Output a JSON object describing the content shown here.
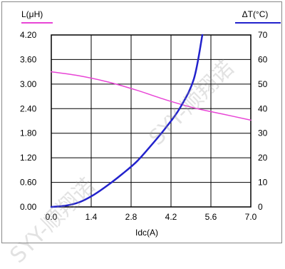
{
  "chart_data": {
    "type": "line",
    "xlabel": "Idc(A)",
    "x_ticks": [
      "0.0",
      "1.4",
      "2.8",
      "4.2",
      "5.6",
      "7.0"
    ],
    "xlim": [
      0,
      7
    ],
    "left_axis": {
      "label": "L(μH)",
      "ticks": [
        "0.00",
        "0.60",
        "1.20",
        "1.80",
        "2.40",
        "3.00",
        "3.60",
        "4.20"
      ],
      "ylim": [
        0,
        4.2
      ]
    },
    "right_axis": {
      "label": "ΔT(°C)",
      "ticks": [
        "0",
        "10",
        "20",
        "30",
        "40",
        "50",
        "60",
        "70"
      ],
      "ylim": [
        0,
        70
      ]
    },
    "grid": true,
    "legend": "title-lines",
    "series": [
      {
        "name": "L(μH)",
        "axis": "left",
        "color": "#e845d6",
        "x": [
          0,
          1,
          2,
          3,
          4,
          5,
          6,
          7
        ],
        "y": [
          3.3,
          3.2,
          3.05,
          2.85,
          2.62,
          2.42,
          2.27,
          2.12
        ]
      },
      {
        "name": "ΔT(°C)",
        "axis": "right",
        "color": "#2222cc",
        "x": [
          0,
          0.5,
          1,
          1.5,
          2,
          2.5,
          3,
          3.5,
          4,
          4.5,
          5,
          5.3
        ],
        "y": [
          0,
          0.5,
          2,
          5,
          9,
          13.5,
          18.5,
          25,
          32,
          40,
          52,
          70
        ]
      }
    ]
  },
  "watermark": "SYY-顺翔诺"
}
